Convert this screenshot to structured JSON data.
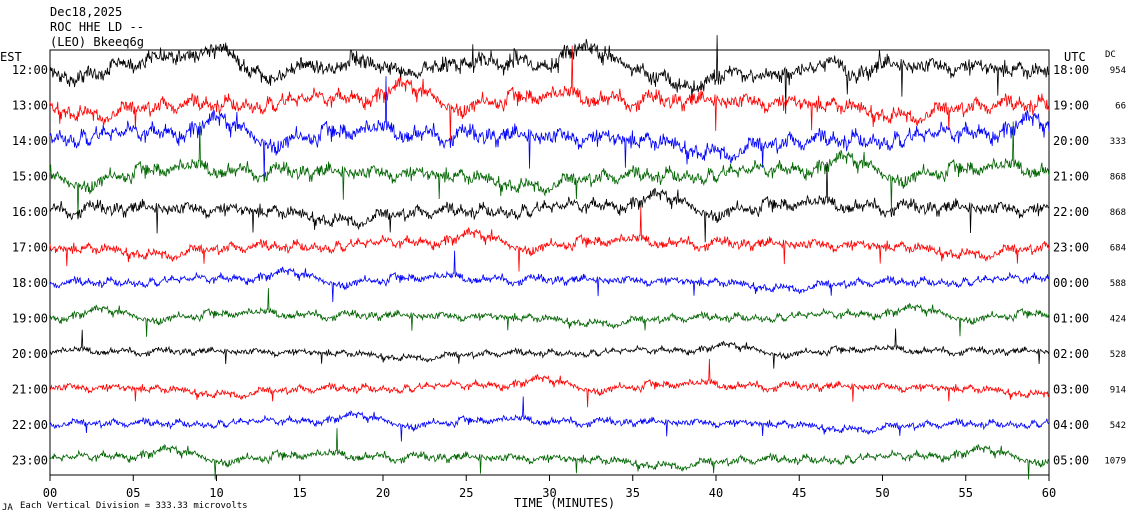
{
  "header": {
    "date": "Dec18,2025",
    "station": "ROC HHE LD --",
    "source": "(LEO) Bkeeq6g"
  },
  "footer": {
    "scale_note": "Each Vertical Division =  333.33 microvolts",
    "corner_mark": "JA"
  },
  "chart_data": {
    "type": "line",
    "subtype": "helicorder",
    "xlabel": "TIME (MINUTES)",
    "xlim": [
      0,
      60
    ],
    "x_ticks": [
      "00",
      "05",
      "10",
      "15",
      "20",
      "25",
      "30",
      "35",
      "40",
      "45",
      "50",
      "55",
      "60"
    ],
    "left_axis_label": "EST",
    "right_axis_label": "UTC",
    "dc_header": "DC",
    "trace_colors": [
      "#000000",
      "#ff0000",
      "#0000ff",
      "#006400"
    ],
    "rows": [
      {
        "est": "12:00",
        "utc": "18:00",
        "dc": "954",
        "color": "#000000",
        "amplitude": 0.62
      },
      {
        "est": "13:00",
        "utc": "19:00",
        "dc": "66",
        "color": "#ff0000",
        "amplitude": 0.6
      },
      {
        "est": "14:00",
        "utc": "20:00",
        "dc": "333",
        "color": "#0000ff",
        "amplitude": 0.65
      },
      {
        "est": "15:00",
        "utc": "21:00",
        "dc": "868",
        "color": "#006400",
        "amplitude": 0.55
      },
      {
        "est": "16:00",
        "utc": "22:00",
        "dc": "868",
        "color": "#000000",
        "amplitude": 0.5
      },
      {
        "est": "17:00",
        "utc": "23:00",
        "dc": "684",
        "color": "#ff0000",
        "amplitude": 0.4
      },
      {
        "est": "18:00",
        "utc": "00:00",
        "dc": "588",
        "color": "#0000ff",
        "amplitude": 0.32
      },
      {
        "est": "19:00",
        "utc": "01:00",
        "dc": "424",
        "color": "#006400",
        "amplitude": 0.3
      },
      {
        "est": "20:00",
        "utc": "02:00",
        "dc": "528",
        "color": "#000000",
        "amplitude": 0.25
      },
      {
        "est": "21:00",
        "utc": "03:00",
        "dc": "914",
        "color": "#ff0000",
        "amplitude": 0.3
      },
      {
        "est": "22:00",
        "utc": "04:00",
        "dc": "542",
        "color": "#0000ff",
        "amplitude": 0.28
      },
      {
        "est": "23:00",
        "utc": "05:00",
        "dc": "1079",
        "color": "#006400",
        "amplitude": 0.32
      }
    ]
  }
}
